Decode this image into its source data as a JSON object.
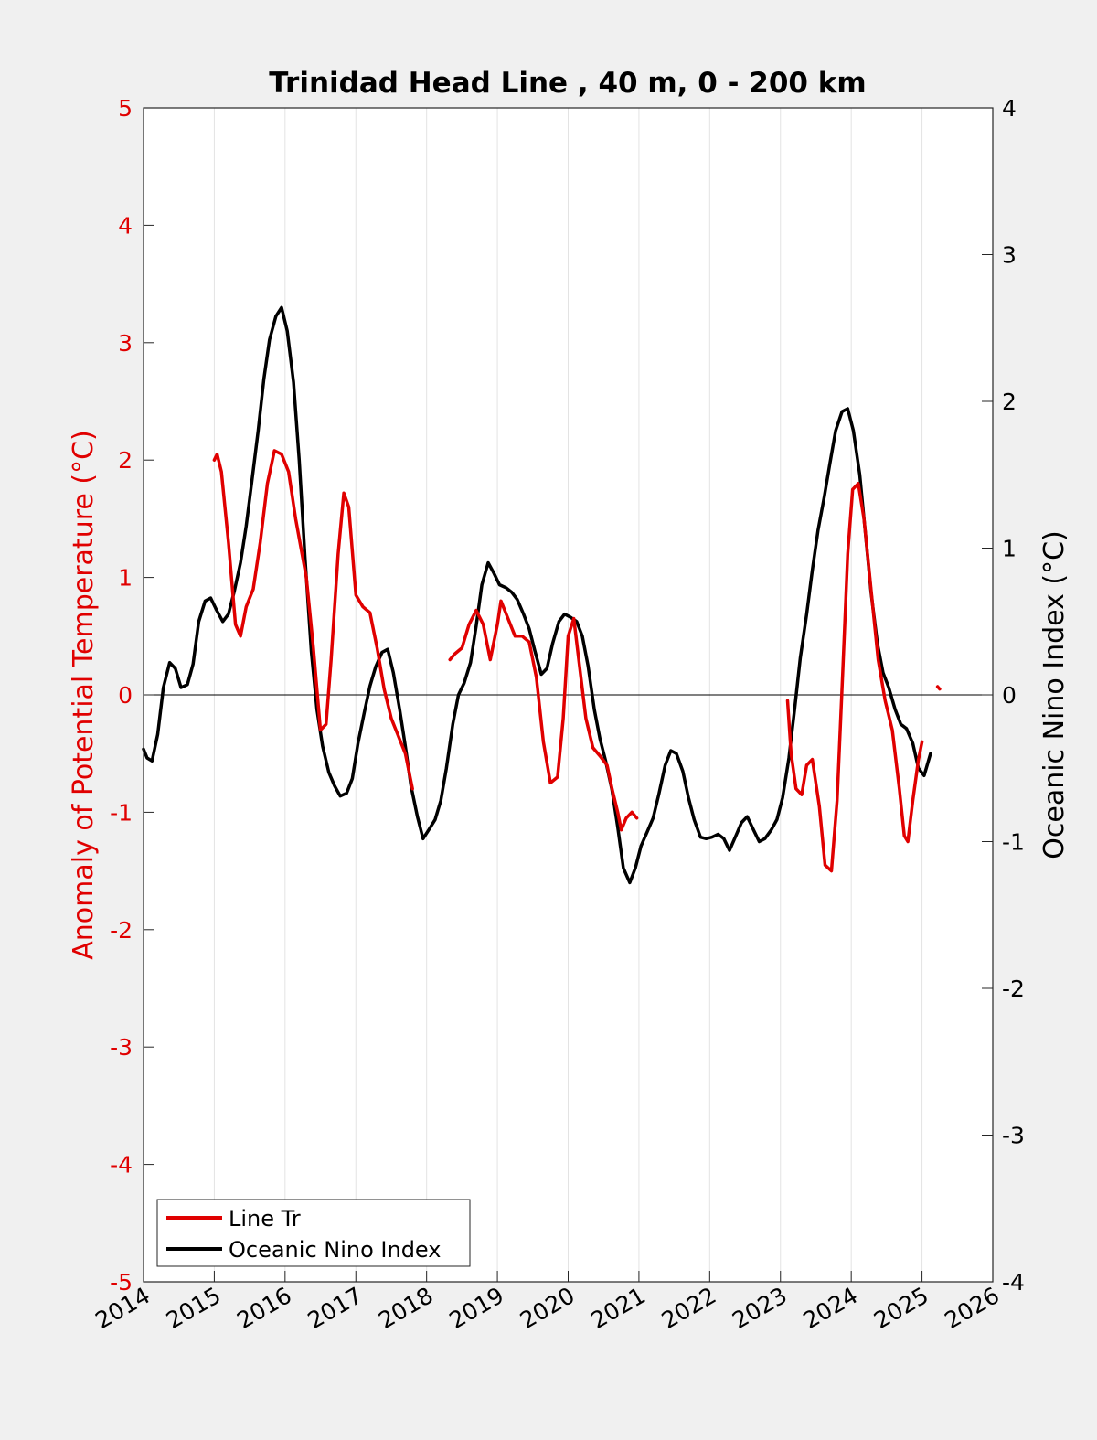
{
  "chart_data": {
    "type": "line",
    "title": "Trinidad Head Line , 40 m, 0 - 200 km",
    "ylabel_left": "Anomaly of Potential Temperature (°C)",
    "ylabel_right": "Oceanic Nino Index (°C)",
    "xlim": [
      2014,
      2026
    ],
    "ylim_left": [
      -5,
      5
    ],
    "ylim_right": [
      -4,
      4
    ],
    "x_ticks": [
      "2014",
      "2015",
      "2016",
      "2017",
      "2018",
      "2019",
      "2020",
      "2021",
      "2022",
      "2023",
      "2024",
      "2025",
      "2026"
    ],
    "y_left_ticks": [
      "5",
      "4",
      "3",
      "2",
      "1",
      "0",
      "-1",
      "-2",
      "-3",
      "-4",
      "-5"
    ],
    "y_right_ticks": [
      "4",
      "3",
      "2",
      "1",
      "0",
      "-1",
      "-2",
      "-3",
      "-4"
    ],
    "grid": "vertical",
    "legend_position": "bottom-left",
    "colors": {
      "line_tr": "#e00000",
      "oni": "#000000",
      "left_axis": "#e00000"
    },
    "series": [
      {
        "name": "Line Tr",
        "axis": "left",
        "segments": [
          [
            [
              2015.0,
              2.0
            ],
            [
              2015.04,
              2.05
            ],
            [
              2015.1,
              1.9
            ],
            [
              2015.2,
              1.3
            ],
            [
              2015.3,
              0.6
            ],
            [
              2015.37,
              0.5
            ],
            [
              2015.45,
              0.75
            ],
            [
              2015.55,
              0.9
            ],
            [
              2015.65,
              1.3
            ],
            [
              2015.75,
              1.8
            ],
            [
              2015.85,
              2.08
            ],
            [
              2015.95,
              2.05
            ],
            [
              2016.05,
              1.9
            ],
            [
              2016.15,
              1.5
            ],
            [
              2016.3,
              1.0
            ],
            [
              2016.4,
              0.4
            ],
            [
              2016.5,
              -0.3
            ],
            [
              2016.58,
              -0.25
            ],
            [
              2016.65,
              0.3
            ],
            [
              2016.75,
              1.2
            ],
            [
              2016.83,
              1.72
            ],
            [
              2016.9,
              1.6
            ],
            [
              2017.0,
              0.85
            ],
            [
              2017.1,
              0.75
            ],
            [
              2017.2,
              0.7
            ],
            [
              2017.3,
              0.4
            ],
            [
              2017.4,
              0.05
            ],
            [
              2017.5,
              -0.2
            ],
            [
              2017.6,
              -0.35
            ],
            [
              2017.7,
              -0.5
            ],
            [
              2017.8,
              -0.8
            ]
          ],
          [
            [
              2018.33,
              0.3
            ],
            [
              2018.4,
              0.35
            ],
            [
              2018.5,
              0.4
            ],
            [
              2018.6,
              0.6
            ],
            [
              2018.7,
              0.72
            ],
            [
              2018.8,
              0.6
            ],
            [
              2018.9,
              0.3
            ],
            [
              2019.0,
              0.6
            ],
            [
              2019.05,
              0.8
            ],
            [
              2019.15,
              0.65
            ],
            [
              2019.25,
              0.5
            ],
            [
              2019.35,
              0.5
            ],
            [
              2019.45,
              0.45
            ],
            [
              2019.55,
              0.15
            ],
            [
              2019.65,
              -0.4
            ],
            [
              2019.75,
              -0.75
            ],
            [
              2019.85,
              -0.7
            ],
            [
              2019.93,
              -0.2
            ],
            [
              2020.0,
              0.5
            ],
            [
              2020.08,
              0.65
            ],
            [
              2020.15,
              0.3
            ],
            [
              2020.25,
              -0.2
            ],
            [
              2020.35,
              -0.45
            ],
            [
              2020.45,
              -0.52
            ],
            [
              2020.55,
              -0.6
            ],
            [
              2020.62,
              -0.8
            ],
            [
              2020.7,
              -1.0
            ],
            [
              2020.75,
              -1.15
            ],
            [
              2020.82,
              -1.05
            ],
            [
              2020.9,
              -1.0
            ],
            [
              2020.97,
              -1.05
            ]
          ],
          [
            [
              2023.1,
              -0.05
            ],
            [
              2023.15,
              -0.5
            ],
            [
              2023.22,
              -0.8
            ],
            [
              2023.3,
              -0.85
            ],
            [
              2023.37,
              -0.6
            ],
            [
              2023.45,
              -0.55
            ],
            [
              2023.55,
              -0.95
            ],
            [
              2023.63,
              -1.45
            ],
            [
              2023.72,
              -1.5
            ],
            [
              2023.8,
              -0.9
            ],
            [
              2023.88,
              0.2
            ],
            [
              2023.95,
              1.2
            ],
            [
              2024.02,
              1.75
            ],
            [
              2024.1,
              1.8
            ],
            [
              2024.18,
              1.5
            ],
            [
              2024.28,
              0.9
            ],
            [
              2024.38,
              0.3
            ],
            [
              2024.48,
              -0.05
            ],
            [
              2024.58,
              -0.3
            ],
            [
              2024.68,
              -0.8
            ],
            [
              2024.75,
              -1.2
            ],
            [
              2024.8,
              -1.25
            ],
            [
              2024.87,
              -0.9
            ],
            [
              2024.95,
              -0.55
            ],
            [
              2025.0,
              -0.4
            ]
          ],
          [
            [
              2025.22,
              0.07
            ],
            [
              2025.25,
              0.05
            ]
          ]
        ]
      },
      {
        "name": "Oceanic Nino Index",
        "axis": "right",
        "points": [
          [
            2014.0,
            -0.37
          ],
          [
            2014.05,
            -0.43
          ],
          [
            2014.12,
            -0.45
          ],
          [
            2014.2,
            -0.27
          ],
          [
            2014.28,
            0.05
          ],
          [
            2014.37,
            0.22
          ],
          [
            2014.45,
            0.18
          ],
          [
            2014.53,
            0.05
          ],
          [
            2014.62,
            0.07
          ],
          [
            2014.7,
            0.21
          ],
          [
            2014.78,
            0.5
          ],
          [
            2014.87,
            0.64
          ],
          [
            2014.95,
            0.66
          ],
          [
            2015.03,
            0.58
          ],
          [
            2015.12,
            0.5
          ],
          [
            2015.2,
            0.55
          ],
          [
            2015.28,
            0.7
          ],
          [
            2015.37,
            0.9
          ],
          [
            2015.45,
            1.15
          ],
          [
            2015.53,
            1.45
          ],
          [
            2015.62,
            1.8
          ],
          [
            2015.7,
            2.15
          ],
          [
            2015.78,
            2.42
          ],
          [
            2015.87,
            2.58
          ],
          [
            2015.95,
            2.64
          ],
          [
            2016.03,
            2.48
          ],
          [
            2016.12,
            2.13
          ],
          [
            2016.2,
            1.6
          ],
          [
            2016.28,
            0.95
          ],
          [
            2016.37,
            0.3
          ],
          [
            2016.45,
            -0.1
          ],
          [
            2016.53,
            -0.35
          ],
          [
            2016.62,
            -0.53
          ],
          [
            2016.7,
            -0.62
          ],
          [
            2016.78,
            -0.69
          ],
          [
            2016.87,
            -0.67
          ],
          [
            2016.95,
            -0.57
          ],
          [
            2017.03,
            -0.33
          ],
          [
            2017.12,
            -0.12
          ],
          [
            2017.2,
            0.06
          ],
          [
            2017.28,
            0.19
          ],
          [
            2017.37,
            0.29
          ],
          [
            2017.45,
            0.31
          ],
          [
            2017.53,
            0.15
          ],
          [
            2017.62,
            -0.1
          ],
          [
            2017.7,
            -0.35
          ],
          [
            2017.78,
            -0.62
          ],
          [
            2017.87,
            -0.83
          ],
          [
            2017.95,
            -0.98
          ],
          [
            2018.03,
            -0.92
          ],
          [
            2018.12,
            -0.85
          ],
          [
            2018.2,
            -0.72
          ],
          [
            2018.28,
            -0.5
          ],
          [
            2018.37,
            -0.2
          ],
          [
            2018.45,
            0.0
          ],
          [
            2018.53,
            0.08
          ],
          [
            2018.62,
            0.22
          ],
          [
            2018.7,
            0.47
          ],
          [
            2018.78,
            0.75
          ],
          [
            2018.87,
            0.9
          ],
          [
            2018.95,
            0.83
          ],
          [
            2019.03,
            0.75
          ],
          [
            2019.12,
            0.73
          ],
          [
            2019.2,
            0.7
          ],
          [
            2019.28,
            0.65
          ],
          [
            2019.37,
            0.55
          ],
          [
            2019.45,
            0.45
          ],
          [
            2019.53,
            0.3
          ],
          [
            2019.62,
            0.14
          ],
          [
            2019.7,
            0.18
          ],
          [
            2019.78,
            0.35
          ],
          [
            2019.87,
            0.5
          ],
          [
            2019.95,
            0.55
          ],
          [
            2020.03,
            0.53
          ],
          [
            2020.12,
            0.5
          ],
          [
            2020.2,
            0.4
          ],
          [
            2020.28,
            0.2
          ],
          [
            2020.37,
            -0.1
          ],
          [
            2020.45,
            -0.3
          ],
          [
            2020.53,
            -0.45
          ],
          [
            2020.62,
            -0.65
          ],
          [
            2020.7,
            -0.9
          ],
          [
            2020.78,
            -1.18
          ],
          [
            2020.87,
            -1.28
          ],
          [
            2020.95,
            -1.18
          ],
          [
            2021.03,
            -1.03
          ],
          [
            2021.12,
            -0.93
          ],
          [
            2021.2,
            -0.84
          ],
          [
            2021.28,
            -0.68
          ],
          [
            2021.37,
            -0.48
          ],
          [
            2021.45,
            -0.38
          ],
          [
            2021.53,
            -0.4
          ],
          [
            2021.62,
            -0.52
          ],
          [
            2021.7,
            -0.7
          ],
          [
            2021.78,
            -0.85
          ],
          [
            2021.87,
            -0.97
          ],
          [
            2021.95,
            -0.98
          ],
          [
            2022.03,
            -0.97
          ],
          [
            2022.12,
            -0.95
          ],
          [
            2022.2,
            -0.98
          ],
          [
            2022.28,
            -1.06
          ],
          [
            2022.37,
            -0.96
          ],
          [
            2022.45,
            -0.87
          ],
          [
            2022.53,
            -0.83
          ],
          [
            2022.62,
            -0.92
          ],
          [
            2022.7,
            -1.0
          ],
          [
            2022.78,
            -0.98
          ],
          [
            2022.87,
            -0.92
          ],
          [
            2022.95,
            -0.85
          ],
          [
            2023.03,
            -0.7
          ],
          [
            2023.12,
            -0.43
          ],
          [
            2023.2,
            -0.1
          ],
          [
            2023.28,
            0.25
          ],
          [
            2023.37,
            0.55
          ],
          [
            2023.45,
            0.85
          ],
          [
            2023.53,
            1.12
          ],
          [
            2023.62,
            1.35
          ],
          [
            2023.7,
            1.58
          ],
          [
            2023.78,
            1.8
          ],
          [
            2023.87,
            1.93
          ],
          [
            2023.95,
            1.95
          ],
          [
            2024.03,
            1.8
          ],
          [
            2024.12,
            1.5
          ],
          [
            2024.2,
            1.1
          ],
          [
            2024.28,
            0.7
          ],
          [
            2024.37,
            0.35
          ],
          [
            2024.45,
            0.15
          ],
          [
            2024.53,
            0.05
          ],
          [
            2024.62,
            -0.1
          ],
          [
            2024.7,
            -0.2
          ],
          [
            2024.78,
            -0.23
          ],
          [
            2024.87,
            -0.33
          ],
          [
            2024.95,
            -0.5
          ],
          [
            2025.03,
            -0.55
          ],
          [
            2025.12,
            -0.4
          ]
        ]
      }
    ]
  }
}
